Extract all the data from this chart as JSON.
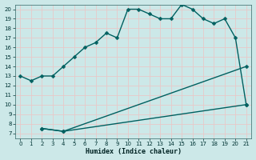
{
  "xlabel": "Humidex (Indice chaleur)",
  "bg_color": "#cce8e8",
  "grid_color": "#b8d8d8",
  "line_color": "#006060",
  "xlim": [
    -0.5,
    21.5
  ],
  "ylim": [
    6.5,
    20.5
  ],
  "xticks": [
    0,
    1,
    2,
    3,
    4,
    5,
    6,
    7,
    8,
    9,
    10,
    11,
    12,
    13,
    14,
    15,
    16,
    17,
    18,
    19,
    20,
    21
  ],
  "yticks": [
    7,
    8,
    9,
    10,
    11,
    12,
    13,
    14,
    15,
    16,
    17,
    18,
    19,
    20
  ],
  "line1_x": [
    0,
    1,
    2,
    3,
    4,
    5,
    6,
    7,
    8,
    9,
    10,
    11,
    12,
    13,
    14,
    15,
    16,
    17,
    18,
    19,
    20,
    21
  ],
  "line1_y": [
    13,
    12.5,
    13,
    13,
    14,
    15,
    16,
    16.5,
    17.5,
    17,
    20,
    20,
    19.5,
    19,
    19,
    20.5,
    20,
    19,
    18.5,
    19,
    17,
    10
  ],
  "line2_x": [
    2,
    4,
    21
  ],
  "line2_y": [
    7.5,
    7.2,
    14
  ],
  "line3_x": [
    2,
    4,
    21
  ],
  "line3_y": [
    7.5,
    7.2,
    10
  ],
  "marker": "D",
  "markersize": 2.5,
  "linewidth": 1.0
}
